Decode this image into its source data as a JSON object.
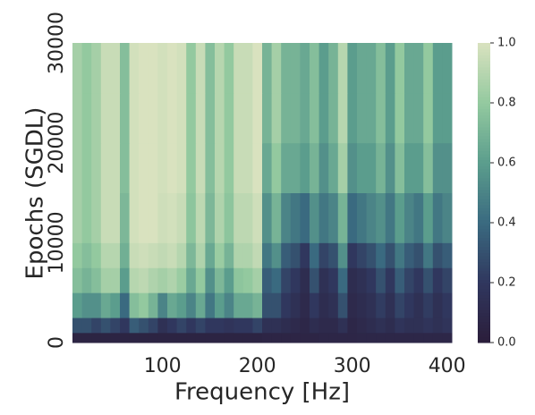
{
  "chart_data": {
    "type": "heatmap",
    "xlabel": "Frequency [Hz]",
    "ylabel": "Epochs (SGDL)",
    "x": [
      10,
      20,
      30,
      40,
      50,
      60,
      70,
      80,
      90,
      100,
      110,
      120,
      130,
      140,
      150,
      160,
      170,
      180,
      190,
      200,
      210,
      220,
      230,
      240,
      250,
      260,
      270,
      280,
      290,
      300,
      310,
      320,
      330,
      340,
      350,
      360,
      370,
      380,
      390,
      400
    ],
    "y_bins": [
      0,
      1000,
      2500,
      5000,
      7500,
      10000,
      15000,
      20000,
      25000,
      30000
    ],
    "values": [
      [
        0.05,
        0.05,
        0.05,
        0.05,
        0.05,
        0.05,
        0.05,
        0.05,
        0.05,
        0.05,
        0.05,
        0.05,
        0.05,
        0.05,
        0.05,
        0.05,
        0.05,
        0.05,
        0.05,
        0.05,
        0.06,
        0.06,
        0.06,
        0.06,
        0.06,
        0.06,
        0.07,
        0.07,
        0.07,
        0.07,
        0.08,
        0.08,
        0.08,
        0.08,
        0.08,
        0.08,
        0.08,
        0.08,
        0.08,
        0.08
      ],
      [
        0.3,
        0.3,
        0.25,
        0.3,
        0.25,
        0.2,
        0.35,
        0.3,
        0.25,
        0.15,
        0.2,
        0.25,
        0.2,
        0.25,
        0.2,
        0.2,
        0.18,
        0.2,
        0.2,
        0.25,
        0.15,
        0.15,
        0.12,
        0.1,
        0.08,
        0.12,
        0.1,
        0.1,
        0.15,
        0.08,
        0.1,
        0.12,
        0.15,
        0.12,
        0.18,
        0.15,
        0.15,
        0.18,
        0.15,
        0.18
      ],
      [
        0.6,
        0.55,
        0.55,
        0.65,
        0.6,
        0.4,
        0.75,
        0.8,
        0.7,
        0.5,
        0.65,
        0.6,
        0.5,
        0.65,
        0.45,
        0.6,
        0.5,
        0.65,
        0.65,
        0.7,
        0.3,
        0.3,
        0.2,
        0.15,
        0.1,
        0.2,
        0.12,
        0.15,
        0.3,
        0.1,
        0.12,
        0.15,
        0.22,
        0.15,
        0.25,
        0.2,
        0.15,
        0.22,
        0.15,
        0.2
      ],
      [
        0.75,
        0.7,
        0.75,
        0.85,
        0.85,
        0.6,
        0.9,
        0.92,
        0.88,
        0.85,
        0.88,
        0.82,
        0.65,
        0.8,
        0.55,
        0.72,
        0.6,
        0.78,
        0.8,
        0.85,
        0.35,
        0.4,
        0.25,
        0.2,
        0.12,
        0.3,
        0.15,
        0.2,
        0.4,
        0.12,
        0.15,
        0.2,
        0.3,
        0.2,
        0.35,
        0.25,
        0.2,
        0.3,
        0.2,
        0.25
      ],
      [
        0.8,
        0.75,
        0.8,
        0.9,
        0.9,
        0.68,
        0.95,
        0.97,
        0.95,
        0.93,
        0.95,
        0.9,
        0.72,
        0.88,
        0.65,
        0.82,
        0.7,
        0.88,
        0.88,
        0.93,
        0.45,
        0.55,
        0.35,
        0.3,
        0.2,
        0.4,
        0.25,
        0.3,
        0.55,
        0.2,
        0.25,
        0.3,
        0.4,
        0.3,
        0.45,
        0.35,
        0.3,
        0.45,
        0.3,
        0.35
      ],
      [
        0.85,
        0.8,
        0.85,
        0.95,
        0.95,
        0.72,
        0.98,
        1,
        1,
        0.97,
        0.98,
        0.95,
        0.78,
        0.92,
        0.72,
        0.88,
        0.78,
        0.92,
        0.92,
        0.97,
        0.55,
        0.7,
        0.5,
        0.45,
        0.4,
        0.55,
        0.45,
        0.5,
        0.7,
        0.4,
        0.45,
        0.5,
        0.55,
        0.45,
        0.6,
        0.5,
        0.45,
        0.6,
        0.45,
        0.5
      ],
      [
        0.85,
        0.8,
        0.85,
        0.95,
        0.95,
        0.75,
        0.98,
        1,
        1,
        0.98,
        1,
        0.98,
        0.8,
        0.95,
        0.75,
        0.9,
        0.8,
        0.95,
        0.95,
        1,
        0.65,
        0.8,
        0.65,
        0.65,
        0.6,
        0.7,
        0.55,
        0.65,
        0.85,
        0.55,
        0.6,
        0.6,
        0.7,
        0.55,
        0.75,
        0.6,
        0.6,
        0.75,
        0.55,
        0.55
      ],
      [
        0.85,
        0.8,
        0.85,
        0.95,
        0.95,
        0.75,
        0.98,
        1,
        1,
        0.98,
        1,
        0.98,
        0.8,
        0.95,
        0.75,
        0.9,
        0.8,
        0.95,
        0.95,
        1,
        0.7,
        0.85,
        0.7,
        0.7,
        0.65,
        0.75,
        0.6,
        0.7,
        0.9,
        0.6,
        0.65,
        0.65,
        0.75,
        0.6,
        0.8,
        0.65,
        0.65,
        0.8,
        0.6,
        0.6
      ],
      [
        0.85,
        0.8,
        0.85,
        0.95,
        0.95,
        0.75,
        0.98,
        1,
        1,
        0.98,
        1,
        0.98,
        0.8,
        0.95,
        0.75,
        0.9,
        0.8,
        0.95,
        0.95,
        1,
        0.7,
        0.85,
        0.7,
        0.7,
        0.65,
        0.75,
        0.6,
        0.7,
        0.9,
        0.6,
        0.65,
        0.65,
        0.75,
        0.6,
        0.8,
        0.65,
        0.65,
        0.8,
        0.6,
        0.6
      ]
    ],
    "xlim": [
      5,
      405
    ],
    "xticks": [
      100,
      200,
      300,
      400
    ],
    "ylim": [
      0,
      30000
    ],
    "yticks": [
      0,
      10000,
      20000,
      30000
    ],
    "clim": [
      0,
      1
    ],
    "cticks": [
      {
        "value": 0,
        "label": "0.0"
      },
      0.2,
      0.4,
      0.6,
      0.8,
      {
        "value": 1,
        "label": "1.0"
      }
    ],
    "colormap": [
      "#2b1d3a",
      "#30375e",
      "#3a6a80",
      "#5b9d8d",
      "#93c99f",
      "#d9e2bf"
    ]
  }
}
